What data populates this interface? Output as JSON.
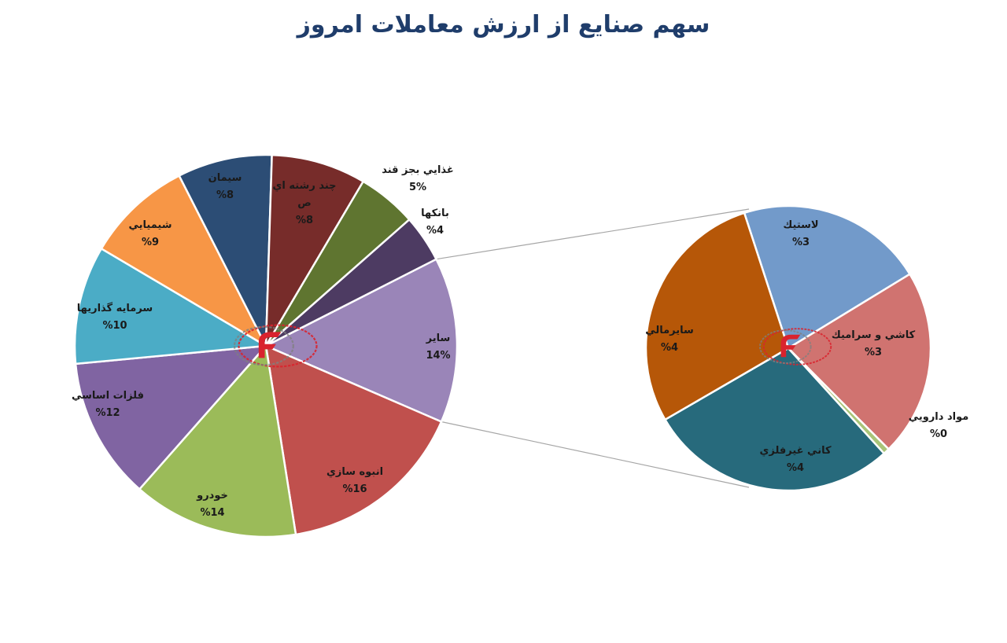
{
  "chart_data": {
    "type": "pie",
    "title": "سهم صنایع از ارزش معاملات امروز",
    "main_pie": {
      "slices": [
        {
          "label": "ساير",
          "value": 14,
          "value_label": "14%",
          "color": "#9a85b8"
        },
        {
          "label": "انبوه سازي",
          "value": 16,
          "value_label": "%16",
          "color": "#c0504d"
        },
        {
          "label": "خودرو",
          "value": 14,
          "value_label": "%14",
          "color": "#9bbb59"
        },
        {
          "label": "فلزات اساسي",
          "value": 12,
          "value_label": "%12",
          "color": "#8064a2"
        },
        {
          "label": "سرمايه گذاريها",
          "value": 10,
          "value_label": "%10",
          "color": "#4bacc6"
        },
        {
          "label": "شيميايي",
          "value": 9,
          "value_label": "%9",
          "color": "#f79646"
        },
        {
          "label": "سيمان",
          "value": 8,
          "value_label": "%8",
          "color": "#2c4d75"
        },
        {
          "label": "چند رشته اي ص",
          "value": 8,
          "value_label": "%8",
          "color": "#772c2a"
        },
        {
          "label": "غذايي بجز قند",
          "value": 5,
          "value_label": "5%",
          "color": "#5f7530"
        },
        {
          "label": "بانکها",
          "value": 4,
          "value_label": "%4",
          "color": "#4d3b62"
        }
      ]
    },
    "secondary_pie": {
      "slices": [
        {
          "label": "لاستيك",
          "value": 3,
          "value_label": "%3",
          "color": "#729aca"
        },
        {
          "label": "كاشي و سراميك",
          "value": 3,
          "value_label": "%3",
          "color": "#d07370"
        },
        {
          "label": "مواد دارويي",
          "value": 0.1,
          "value_label": "%0",
          "color": "#a9c478"
        },
        {
          "label": "كاني غيرفلزي",
          "value": 4,
          "value_label": "%4",
          "color": "#276a7c"
        },
        {
          "label": "سايرمالي",
          "value": 4,
          "value_label": "%4",
          "color": "#b65708"
        }
      ]
    },
    "colors": {
      "title": "#1f3d6b",
      "label": "#1a1a1a",
      "connector": "#a6a6a6",
      "logo_red": "#d9232e",
      "logo_gray": "#7f7f7f"
    }
  }
}
